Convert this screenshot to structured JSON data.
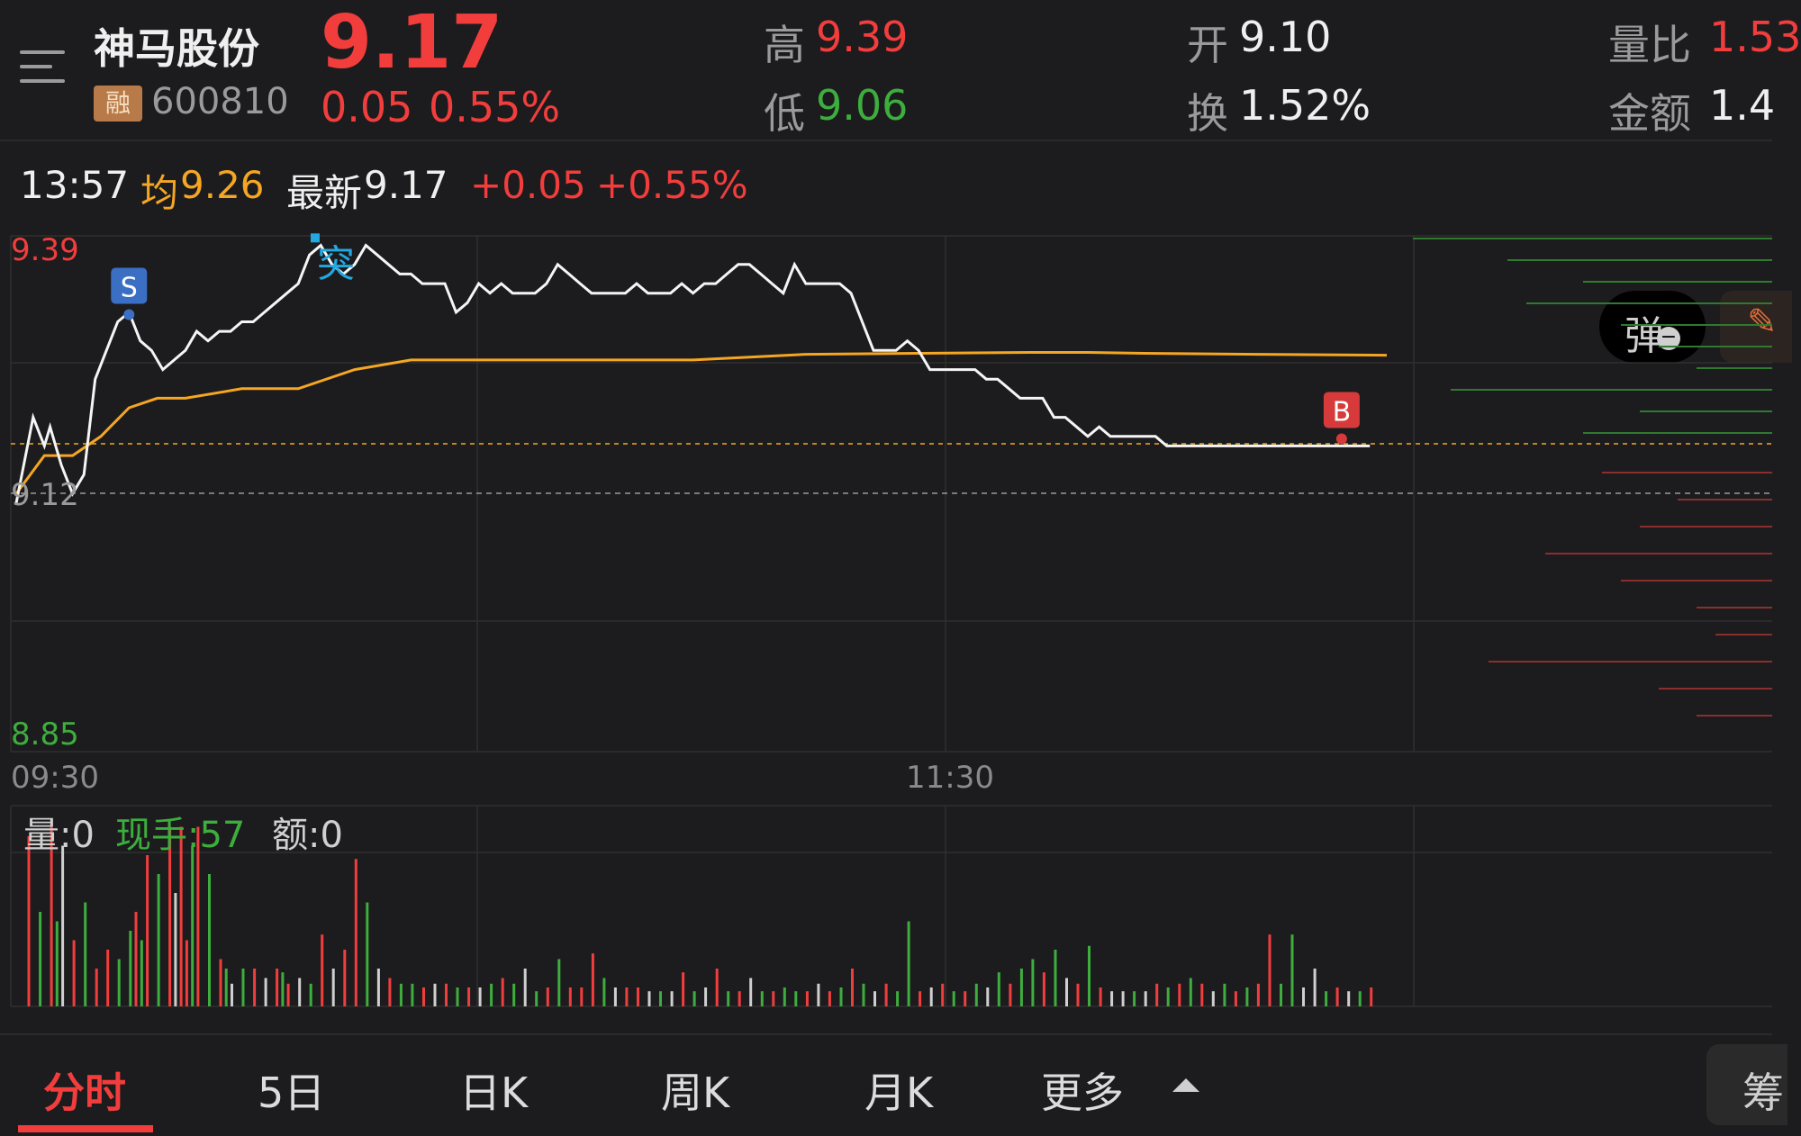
{
  "header": {
    "stock_name": "神马股份",
    "stock_code": "600810",
    "margin_badge": "融",
    "price": "9.17",
    "change": "0.05",
    "change_pct": "0.55%",
    "high_label": "高",
    "high_value": "9.39",
    "low_label": "低",
    "low_value": "9.06",
    "open_label": "开",
    "open_value": "9.10",
    "turnover_label": "换",
    "turnover_value": "1.52%",
    "volume_ratio_label": "量比",
    "volume_ratio_value": "1.53",
    "amount_label": "金额",
    "amount_value": "1.4"
  },
  "infobar": {
    "time": "13:57",
    "avg_label": "均",
    "avg_value": "9.26",
    "latest_label": "最新",
    "latest_value": "9.17",
    "change": "+0.05",
    "change_pct": "+0.55%",
    "dan_button": "弹"
  },
  "chart_data": {
    "type": "line",
    "price_axis": {
      "top": "9.39",
      "ref": "9.12",
      "bottom": "8.85"
    },
    "ylim": [
      8.85,
      9.39
    ],
    "reference_price": 9.12,
    "time_labels": [
      "09:30",
      "11:30"
    ],
    "markers": [
      {
        "label": "S",
        "type": "sell",
        "x": 20,
        "y": 9.3
      },
      {
        "label": "突",
        "type": "breakout",
        "x": 53,
        "y": 9.385
      },
      {
        "label": "B",
        "type": "buy",
        "x": 235,
        "y": 9.17
      }
    ],
    "price_series": {
      "name": "price",
      "x": [
        0,
        3,
        5,
        6,
        8,
        10,
        12,
        14,
        16,
        18,
        20,
        22,
        24,
        26,
        28,
        30,
        32,
        34,
        36,
        38,
        40,
        42,
        44,
        46,
        48,
        50,
        52,
        54,
        56,
        58,
        60,
        62,
        64,
        66,
        68,
        70,
        72,
        74,
        76,
        78,
        80,
        82,
        84,
        86,
        88,
        90,
        92,
        94,
        96,
        98,
        100,
        102,
        104,
        106,
        108,
        110,
        112,
        114,
        116,
        118,
        120,
        122,
        124,
        126,
        128,
        130,
        132,
        134,
        136,
        138,
        140,
        142,
        144,
        146,
        148,
        150,
        152,
        154,
        156,
        158,
        160,
        162,
        164,
        166,
        168,
        170,
        172,
        174,
        176,
        178,
        180,
        182,
        184,
        186,
        188,
        190,
        192,
        194,
        196,
        198,
        200,
        202,
        204,
        206,
        208,
        210,
        212,
        214,
        216,
        218,
        220,
        222,
        224,
        226,
        228,
        230,
        232,
        234,
        236,
        238,
        240
      ],
      "values": [
        9.11,
        9.2,
        9.17,
        9.19,
        9.15,
        9.12,
        9.14,
        9.24,
        9.27,
        9.3,
        9.31,
        9.28,
        9.27,
        9.25,
        9.26,
        9.27,
        9.29,
        9.28,
        9.29,
        9.29,
        9.3,
        9.3,
        9.31,
        9.32,
        9.33,
        9.34,
        9.37,
        9.38,
        9.36,
        9.35,
        9.36,
        9.38,
        9.37,
        9.36,
        9.35,
        9.35,
        9.34,
        9.34,
        9.34,
        9.31,
        9.32,
        9.34,
        9.33,
        9.34,
        9.33,
        9.33,
        9.33,
        9.34,
        9.36,
        9.35,
        9.34,
        9.33,
        9.33,
        9.33,
        9.33,
        9.34,
        9.33,
        9.33,
        9.33,
        9.34,
        9.33,
        9.34,
        9.34,
        9.35,
        9.36,
        9.36,
        9.35,
        9.34,
        9.33,
        9.36,
        9.34,
        9.34,
        9.34,
        9.34,
        9.33,
        9.3,
        9.27,
        9.27,
        9.27,
        9.28,
        9.27,
        9.25,
        9.25,
        9.25,
        9.25,
        9.25,
        9.24,
        9.24,
        9.23,
        9.22,
        9.22,
        9.22,
        9.2,
        9.2,
        9.19,
        9.18,
        9.19,
        9.18,
        9.18,
        9.18,
        9.18,
        9.18,
        9.17,
        9.17,
        9.17,
        9.17,
        9.17,
        9.17,
        9.17,
        9.17,
        9.17,
        9.17,
        9.17,
        9.17,
        9.17,
        9.17,
        9.17,
        9.17,
        9.17,
        9.17,
        9.17
      ]
    },
    "avg_series": {
      "name": "avg",
      "x": [
        0,
        5,
        10,
        15,
        20,
        25,
        30,
        40,
        50,
        60,
        70,
        80,
        100,
        120,
        140,
        160,
        180,
        190,
        200,
        220,
        243
      ],
      "values": [
        9.12,
        9.16,
        9.16,
        9.18,
        9.21,
        9.22,
        9.22,
        9.23,
        9.23,
        9.25,
        9.26,
        9.26,
        9.26,
        9.26,
        9.266,
        9.267,
        9.268,
        9.268,
        9.267,
        9.266,
        9.265
      ]
    },
    "volume": {
      "labels": {
        "vol": "量:0",
        "cur_hand": "现手:57",
        "amount": "额:0"
      },
      "bars": [
        [
          2,
          0.9,
          "r"
        ],
        [
          4,
          0.5,
          "g"
        ],
        [
          6,
          0.95,
          "r"
        ],
        [
          7,
          0.45,
          "g"
        ],
        [
          8,
          0.85,
          "w"
        ],
        [
          10,
          0.35,
          "r"
        ],
        [
          12,
          0.55,
          "g"
        ],
        [
          14,
          0.2,
          "r"
        ],
        [
          16,
          0.3,
          "r"
        ],
        [
          18,
          0.25,
          "g"
        ],
        [
          20,
          0.4,
          "g"
        ],
        [
          21,
          0.5,
          "r"
        ],
        [
          22,
          0.35,
          "g"
        ],
        [
          23,
          0.8,
          "r"
        ],
        [
          25,
          0.7,
          "g"
        ],
        [
          27,
          0.95,
          "r"
        ],
        [
          28,
          0.6,
          "w"
        ],
        [
          29,
          0.95,
          "r"
        ],
        [
          30,
          0.35,
          "r"
        ],
        [
          31,
          0.85,
          "g"
        ],
        [
          32,
          0.95,
          "r"
        ],
        [
          34,
          0.7,
          "g"
        ],
        [
          36,
          0.25,
          "r"
        ],
        [
          37,
          0.2,
          "g"
        ],
        [
          38,
          0.12,
          "w"
        ],
        [
          40,
          0.2,
          "g"
        ],
        [
          42,
          0.2,
          "r"
        ],
        [
          44,
          0.15,
          "w"
        ],
        [
          46,
          0.2,
          "r"
        ],
        [
          47,
          0.18,
          "g"
        ],
        [
          48,
          0.12,
          "r"
        ],
        [
          50,
          0.15,
          "w"
        ],
        [
          52,
          0.12,
          "g"
        ],
        [
          54,
          0.38,
          "r"
        ],
        [
          56,
          0.2,
          "w"
        ],
        [
          58,
          0.3,
          "r"
        ],
        [
          60,
          0.78,
          "r"
        ],
        [
          62,
          0.55,
          "g"
        ],
        [
          64,
          0.2,
          "w"
        ],
        [
          66,
          0.15,
          "r"
        ],
        [
          68,
          0.12,
          "g"
        ],
        [
          70,
          0.12,
          "g"
        ],
        [
          72,
          0.1,
          "r"
        ],
        [
          74,
          0.12,
          "w"
        ],
        [
          76,
          0.12,
          "r"
        ],
        [
          78,
          0.1,
          "g"
        ],
        [
          80,
          0.1,
          "r"
        ],
        [
          82,
          0.1,
          "w"
        ],
        [
          84,
          0.12,
          "g"
        ],
        [
          86,
          0.15,
          "r"
        ],
        [
          88,
          0.12,
          "g"
        ],
        [
          90,
          0.2,
          "w"
        ],
        [
          92,
          0.08,
          "g"
        ],
        [
          94,
          0.1,
          "r"
        ],
        [
          96,
          0.25,
          "g"
        ],
        [
          98,
          0.1,
          "r"
        ],
        [
          100,
          0.1,
          "r"
        ],
        [
          102,
          0.28,
          "r"
        ],
        [
          104,
          0.15,
          "g"
        ],
        [
          106,
          0.1,
          "w"
        ],
        [
          108,
          0.1,
          "r"
        ],
        [
          110,
          0.1,
          "r"
        ],
        [
          112,
          0.08,
          "w"
        ],
        [
          114,
          0.08,
          "g"
        ],
        [
          116,
          0.08,
          "w"
        ],
        [
          118,
          0.18,
          "r"
        ],
        [
          120,
          0.08,
          "g"
        ],
        [
          122,
          0.1,
          "w"
        ],
        [
          124,
          0.2,
          "r"
        ],
        [
          126,
          0.08,
          "g"
        ],
        [
          128,
          0.08,
          "r"
        ],
        [
          130,
          0.15,
          "w"
        ],
        [
          132,
          0.08,
          "g"
        ],
        [
          134,
          0.08,
          "r"
        ],
        [
          136,
          0.1,
          "g"
        ],
        [
          138,
          0.08,
          "g"
        ],
        [
          140,
          0.08,
          "r"
        ],
        [
          142,
          0.12,
          "w"
        ],
        [
          144,
          0.08,
          "r"
        ],
        [
          146,
          0.1,
          "g"
        ],
        [
          148,
          0.2,
          "r"
        ],
        [
          150,
          0.12,
          "g"
        ],
        [
          152,
          0.08,
          "w"
        ],
        [
          154,
          0.12,
          "r"
        ],
        [
          156,
          0.08,
          "g"
        ],
        [
          158,
          0.45,
          "g"
        ],
        [
          160,
          0.08,
          "r"
        ],
        [
          162,
          0.1,
          "w"
        ],
        [
          164,
          0.12,
          "r"
        ],
        [
          166,
          0.08,
          "g"
        ],
        [
          168,
          0.08,
          "r"
        ],
        [
          170,
          0.12,
          "g"
        ],
        [
          172,
          0.1,
          "w"
        ],
        [
          174,
          0.18,
          "g"
        ],
        [
          176,
          0.12,
          "r"
        ],
        [
          178,
          0.2,
          "g"
        ],
        [
          180,
          0.25,
          "g"
        ],
        [
          182,
          0.18,
          "r"
        ],
        [
          184,
          0.3,
          "g"
        ],
        [
          186,
          0.15,
          "w"
        ],
        [
          188,
          0.12,
          "r"
        ],
        [
          190,
          0.32,
          "g"
        ],
        [
          192,
          0.1,
          "r"
        ],
        [
          194,
          0.08,
          "w"
        ],
        [
          196,
          0.08,
          "w"
        ],
        [
          198,
          0.08,
          "g"
        ],
        [
          200,
          0.08,
          "w"
        ],
        [
          202,
          0.12,
          "r"
        ],
        [
          204,
          0.1,
          "g"
        ],
        [
          206,
          0.12,
          "r"
        ],
        [
          208,
          0.15,
          "g"
        ],
        [
          210,
          0.12,
          "r"
        ],
        [
          212,
          0.08,
          "w"
        ],
        [
          214,
          0.12,
          "g"
        ],
        [
          216,
          0.08,
          "r"
        ],
        [
          218,
          0.1,
          "g"
        ],
        [
          220,
          0.12,
          "r"
        ],
        [
          222,
          0.38,
          "r"
        ],
        [
          224,
          0.12,
          "g"
        ],
        [
          226,
          0.38,
          "g"
        ],
        [
          228,
          0.1,
          "w"
        ],
        [
          230,
          0.2,
          "w"
        ],
        [
          232,
          0.08,
          "g"
        ],
        [
          234,
          0.1,
          "r"
        ],
        [
          236,
          0.08,
          "w"
        ],
        [
          238,
          0.08,
          "g"
        ],
        [
          240,
          0.1,
          "r"
        ]
      ]
    },
    "orderbook": {
      "sell": [
        0.95,
        0.7,
        0.5,
        0.65,
        0.4,
        0.3,
        0.2,
        0.85,
        0.35,
        0.5
      ],
      "buy": [
        0.45,
        0.25,
        0.35,
        0.6,
        0.4,
        0.2,
        0.15,
        0.75,
        0.3,
        0.2
      ]
    }
  },
  "tabs": {
    "intraday": "分时",
    "five_day": "5日",
    "daily_k": "日K",
    "weekly_k": "周K",
    "monthly_k": "月K",
    "more": "更多",
    "chips": "筹"
  },
  "colors": {
    "up": "#f23d3d",
    "down": "#3dae3d",
    "avg": "#f5a623",
    "bg": "#1c1c1e",
    "price_line": "#f5f5f5"
  }
}
